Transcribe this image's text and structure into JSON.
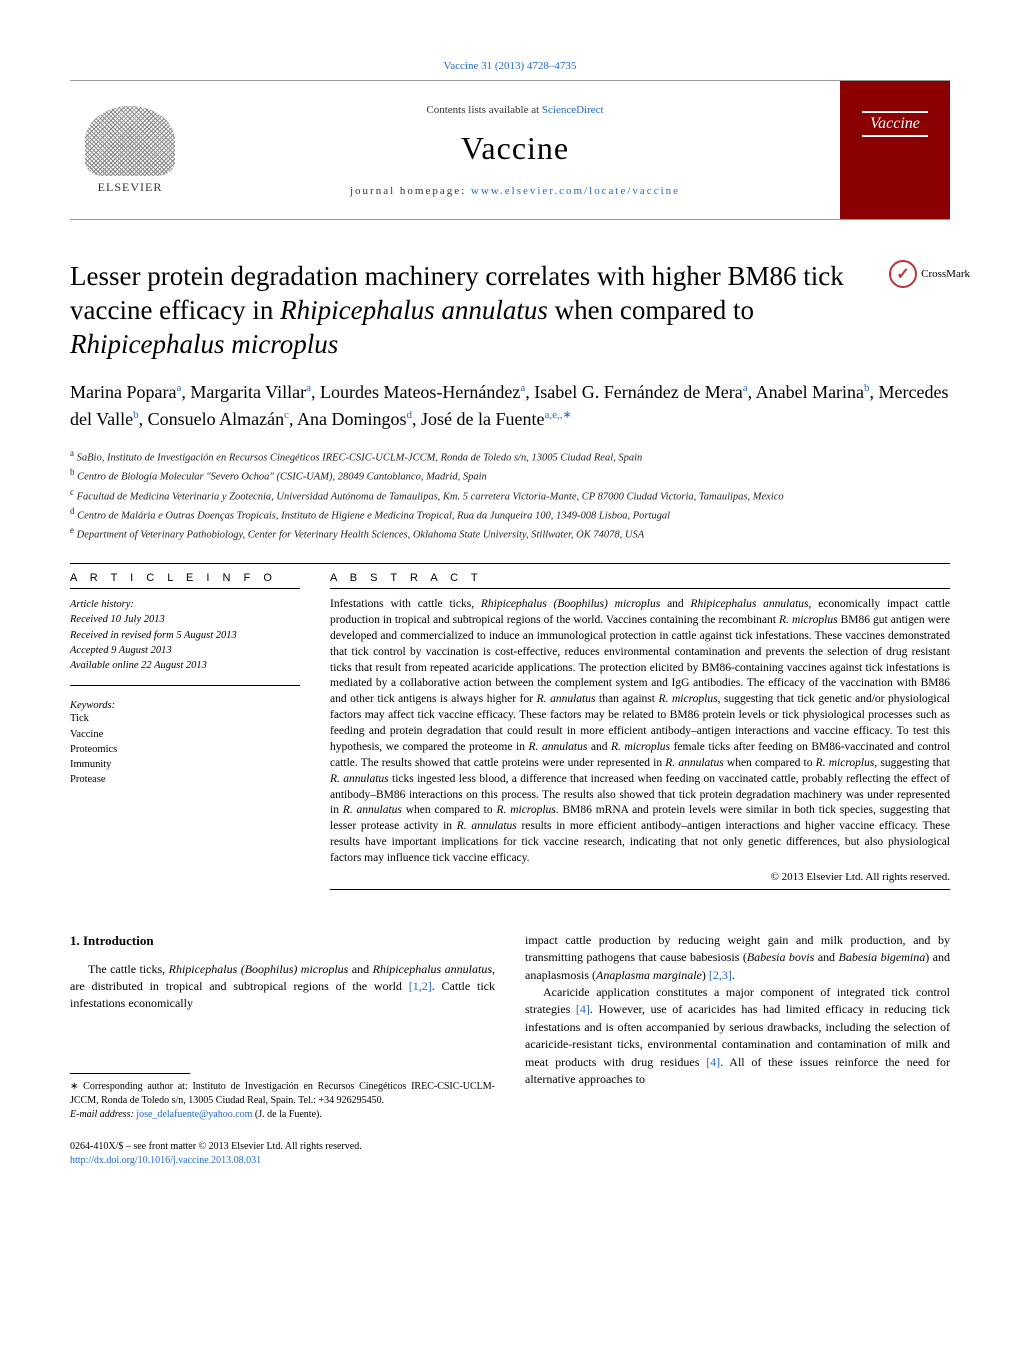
{
  "top_link": "Vaccine 31 (2013) 4728–4735",
  "contents_line_prefix": "Contents lists available at ",
  "contents_link": "ScienceDirect",
  "journal_name": "Vaccine",
  "homepage_prefix": "journal homepage: ",
  "homepage_url": "www.elsevier.com/locate/vaccine",
  "elsevier": "ELSEVIER",
  "cover_label": "Vaccine",
  "crossmark": "CrossMark",
  "title_part1": "Lesser protein degradation machinery correlates with higher BM86 tick vaccine efficacy in ",
  "title_em1": "Rhipicephalus annulatus",
  "title_part2": " when compared to ",
  "title_em2": "Rhipicephalus microplus",
  "authors_html": "Marina Popara|a|, Margarita Villar|a|, Lourdes Mateos-Hernández|a|, Isabel G. Fernández de Mera|a|, Anabel Marina|b|, Mercedes del Valle|b|, Consuelo Almazán|c|, Ana Domingos|d|, José de la Fuente|a,e,*|",
  "affiliations": {
    "a": "SaBio, Instituto de Investigación en Recursos Cinegéticos IREC-CSIC-UCLM-JCCM, Ronda de Toledo s/n, 13005 Ciudad Real, Spain",
    "b": "Centro de Biología Molecular \"Severo Ochoa\" (CSIC-UAM), 28049 Cantoblanco, Madrid, Spain",
    "c": "Facultad de Medicina Veterinaria y Zootecnia, Universidad Autónoma de Tamaulipas, Km. 5 carretera Victoria-Mante, CP 87000 Ciudad Victoria, Tamaulipas, Mexico",
    "d": "Centro de Malária e Outras Doenças Tropicais, Instituto de Higiene e Medicina Tropical, Rua da Junqueira 100, 1349-008 Lisboa, Portugal",
    "e": "Department of Veterinary Pathobiology, Center for Veterinary Health Sciences, Oklahoma State University, Stillwater, OK 74078, USA"
  },
  "article_info_head": "A R T I C L E   I N F O",
  "abstract_head": "A B S T R A C T",
  "history": {
    "label": "Article history:",
    "received": "Received 10 July 2013",
    "revised": "Received in revised form 5 August 2013",
    "accepted": "Accepted 9 August 2013",
    "online": "Available online 22 August 2013"
  },
  "keywords_label": "Keywords:",
  "keywords": [
    "Tick",
    "Vaccine",
    "Proteomics",
    "Immunity",
    "Protease"
  ],
  "abstract": "Infestations with cattle ticks, Rhipicephalus (Boophilus) microplus and Rhipicephalus annulatus, economically impact cattle production in tropical and subtropical regions of the world. Vaccines containing the recombinant R. microplus BM86 gut antigen were developed and commercialized to induce an immunological protection in cattle against tick infestations. These vaccines demonstrated that tick control by vaccination is cost-effective, reduces environmental contamination and prevents the selection of drug resistant ticks that result from repeated acaricide applications. The protection elicited by BM86-containing vaccines against tick infestations is mediated by a collaborative action between the complement system and IgG antibodies. The efficacy of the vaccination with BM86 and other tick antigens is always higher for R. annulatus than against R. microplus, suggesting that tick genetic and/or physiological factors may affect tick vaccine efficacy. These factors may be related to BM86 protein levels or tick physiological processes such as feeding and protein degradation that could result in more efficient antibody–antigen interactions and vaccine efficacy. To test this hypothesis, we compared the proteome in R. annulatus and R. microplus female ticks after feeding on BM86-vaccinated and control cattle. The results showed that cattle proteins were under represented in R. annulatus when compared to R. microplus, suggesting that R. annulatus ticks ingested less blood, a difference that increased when feeding on vaccinated cattle, probably reflecting the effect of antibody–BM86 interactions on this process. The results also showed that tick protein degradation machinery was under represented in R. annulatus when compared to R. microplus. BM86 mRNA and protein levels were similar in both tick species, suggesting that lesser protease activity in R. annulatus results in more efficient antibody–antigen interactions and higher vaccine efficacy. These results have important implications for tick vaccine research, indicating that not only genetic differences, but also physiological factors may influence tick vaccine efficacy.",
  "copyright": "© 2013 Elsevier Ltd. All rights reserved.",
  "intro_head": "1.  Introduction",
  "intro_p1_a": "The cattle ticks, ",
  "intro_p1_em1": "Rhipicephalus (Boophilus) microplus",
  "intro_p1_b": " and ",
  "intro_p1_em2": "Rhipicephalus annulatus",
  "intro_p1_c": ", are distributed in tropical and subtropical regions of the world ",
  "intro_p1_ref1": "[1,2]",
  "intro_p1_d": ". Cattle tick infestations economically",
  "intro_p2_a": "impact cattle production by reducing weight gain and milk production, and by transmitting pathogens that cause babesiosis (",
  "intro_p2_em1": "Babesia bovis",
  "intro_p2_b": " and ",
  "intro_p2_em2": "Babesia bigemina",
  "intro_p2_c": ") and anaplasmosis (",
  "intro_p2_em3": "Anaplasma marginale",
  "intro_p2_d": ") ",
  "intro_p2_ref": "[2,3]",
  "intro_p2_e": ".",
  "intro_p3_a": "Acaricide application constitutes a major component of integrated tick control strategies ",
  "intro_p3_ref1": "[4]",
  "intro_p3_b": ". However, use of acaricides has had limited efficacy in reducing tick infestations and is often accompanied by serious drawbacks, including the selection of acaricide-resistant ticks, environmental contamination and contamination of milk and meat products with drug residues ",
  "intro_p3_ref2": "[4]",
  "intro_p3_c": ". All of these issues reinforce the need for alternative approaches to",
  "footnote_corr": "∗ Corresponding author at: Instituto de Investigación en Recursos Cinegéticos IREC-CSIC-UCLM-JCCM, Ronda de Toledo s/n, 13005 Ciudad Real, Spain. Tel.: +34 926295450.",
  "footnote_email_label": "E-mail address: ",
  "footnote_email": "jose_delafuente@yahoo.com",
  "footnote_email_suffix": " (J. de la Fuente).",
  "bottom_issn": "0264-410X/$ – see front matter © 2013 Elsevier Ltd. All rights reserved.",
  "bottom_doi": "http://dx.doi.org/10.1016/j.vaccine.2013.08.031",
  "colors": {
    "link": "#2068c8",
    "cover_bg": "#8b0000",
    "crossmark": "#b33"
  }
}
